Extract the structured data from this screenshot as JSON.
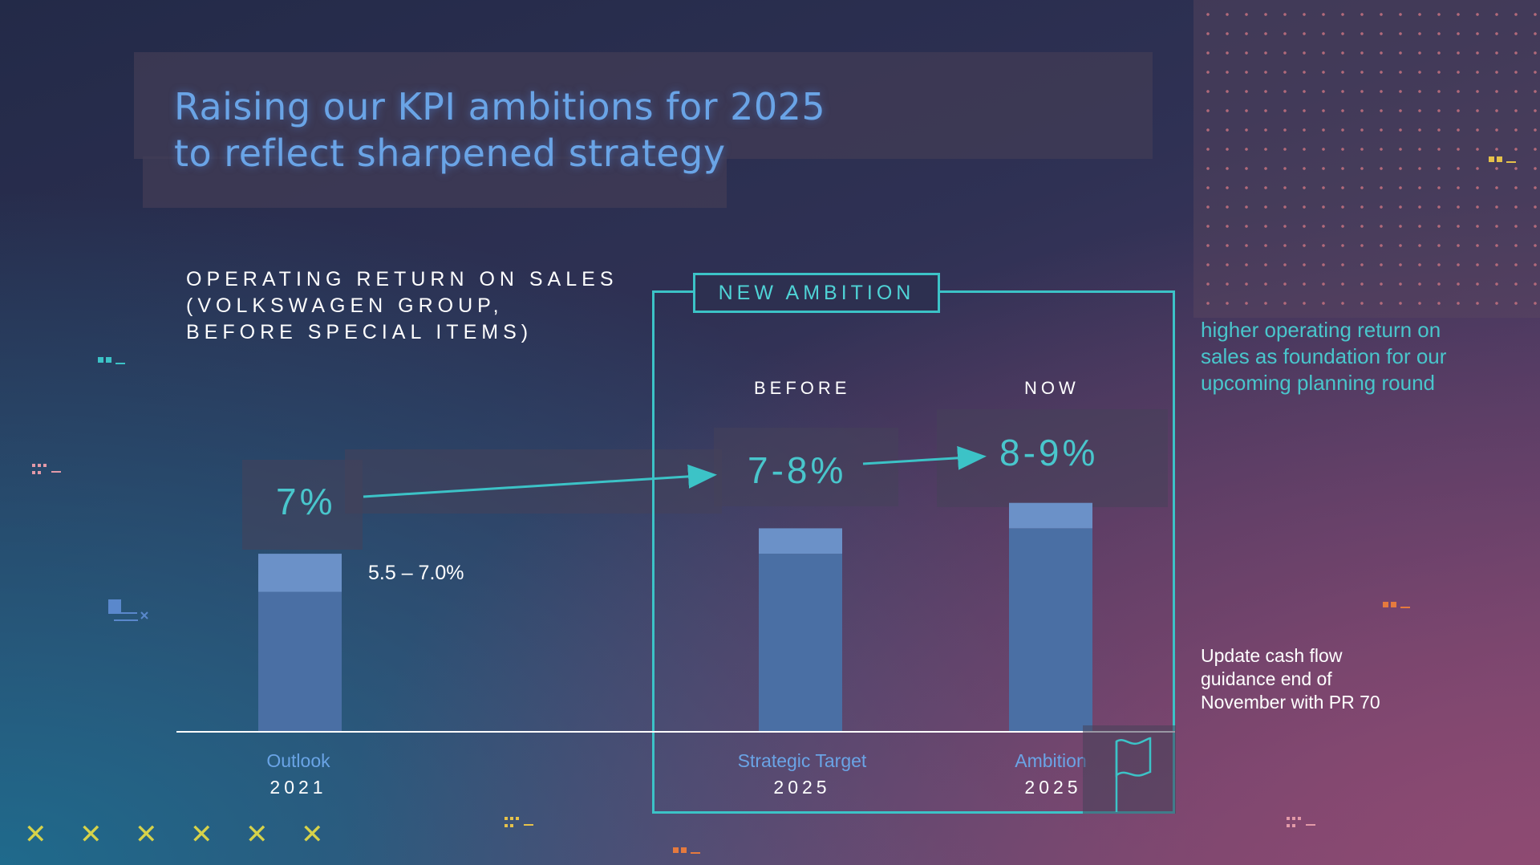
{
  "title": {
    "line1": "Raising our KPI ambitions for 2025",
    "line2": "to reflect sharpened strategy"
  },
  "chart_title": {
    "line1": "OPERATING RETURN ON SALES",
    "line2": "(VOLKSWAGEN GROUP,",
    "line3": "BEFORE SPECIAL ITEMS)"
  },
  "ambition_box": {
    "label": "NEW AMBITION",
    "before": "BEFORE",
    "now": "NOW"
  },
  "chart_data": {
    "type": "bar",
    "title": "OPERATING RETURN ON SALES (VOLKSWAGEN GROUP, BEFORE SPECIAL ITEMS)",
    "unit": "%",
    "categories": [
      "Outlook",
      "Strategic Target",
      "Ambition"
    ],
    "years": [
      "2021",
      "2025",
      "2025"
    ],
    "series": [
      {
        "name": "range_low",
        "values": [
          5.5,
          7,
          8
        ]
      },
      {
        "name": "range_high",
        "values": [
          7,
          8,
          9
        ]
      }
    ],
    "value_labels": [
      "7%",
      "7-8%",
      "8-9%"
    ],
    "range_annotation": "5.5 – 7.0%",
    "ylim": [
      0,
      9
    ],
    "colors": {
      "bar": "#4a6fa4",
      "bar_top": "#6b91c8",
      "accent": "#3cc3c7"
    }
  },
  "side_text": "higher operating return on sales as foundation for our upcoming planning round",
  "note_text": "Update cash flow guidance end of November with PR 70",
  "decor": {
    "xmark": "✕",
    "count": 6
  }
}
